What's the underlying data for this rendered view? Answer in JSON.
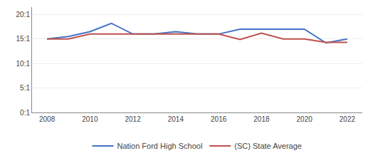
{
  "chart_data": {
    "type": "line",
    "x": [
      2008,
      2009,
      2010,
      2011,
      2012,
      2013,
      2014,
      2015,
      2016,
      2017,
      2018,
      2019,
      2020,
      2021,
      2022
    ],
    "series": [
      {
        "name": "Nation Ford High School",
        "color": "#4472c4",
        "values": [
          15.0,
          15.5,
          16.5,
          18.2,
          16.0,
          16.0,
          16.5,
          16.0,
          16.0,
          17.0,
          17.0,
          17.0,
          17.0,
          14.2,
          15.0
        ]
      },
      {
        "name": "(SC) State Average",
        "color": "#c0504d",
        "values": [
          15.0,
          15.0,
          16.0,
          16.0,
          16.0,
          16.0,
          16.0,
          16.0,
          16.0,
          14.9,
          16.2,
          15.0,
          15.0,
          14.3,
          14.3
        ]
      }
    ],
    "xlim": [
      2007.3,
      2022.7
    ],
    "xticks": [
      2008,
      2010,
      2012,
      2014,
      2016,
      2018,
      2020,
      2022
    ],
    "ylim": [
      0,
      21.5
    ],
    "yticks": [
      {
        "value": 0,
        "label": "0:1"
      },
      {
        "value": 5,
        "label": "5:1"
      },
      {
        "value": 10,
        "label": "10:1"
      },
      {
        "value": 15,
        "label": "15:1"
      },
      {
        "value": 20,
        "label": "20:1"
      }
    ],
    "grid": true,
    "legend": "bottom"
  }
}
